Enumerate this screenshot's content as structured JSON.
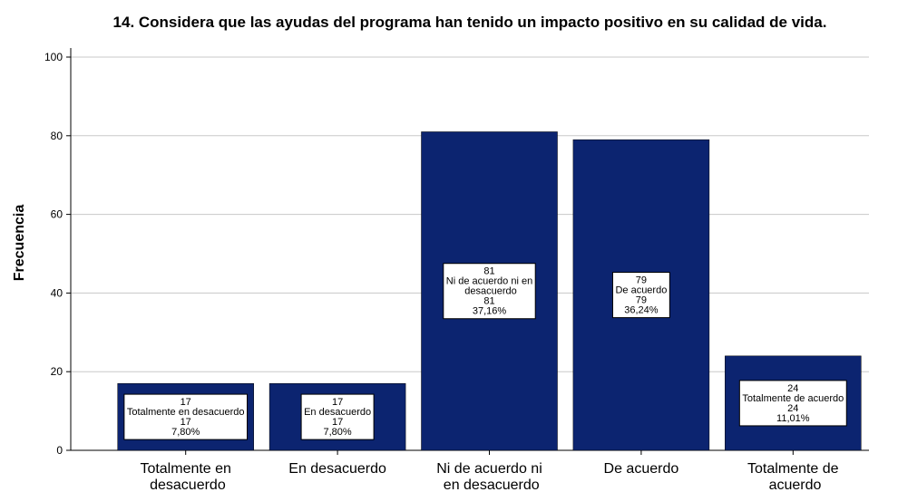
{
  "chart_data": {
    "type": "bar",
    "title": "14. Considera que las ayudas del programa han tenido un impacto positivo en su calidad de vida.",
    "y_label": "Frecuencia",
    "categories": [
      "Totalmente en desacuerdo",
      "En desacuerdo",
      "Ni de acuerdo ni en desacuerdo",
      "De acuerdo",
      "Totalmente de acuerdo"
    ],
    "values": [
      17,
      17,
      81,
      79,
      24
    ],
    "percent_labels": [
      "7,80%",
      "7,80%",
      "37,16%",
      "36,24%",
      "11,01%"
    ],
    "color": "#0c2470",
    "ylim": [
      0,
      100
    ],
    "yticks": [
      0,
      20,
      40,
      60,
      80,
      100
    ],
    "grid": true
  }
}
